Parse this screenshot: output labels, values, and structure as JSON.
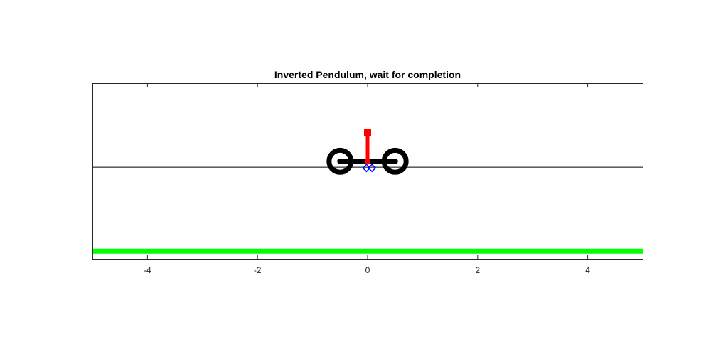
{
  "chart_data": {
    "type": "scatter",
    "title": "Inverted Pendulum, wait for completion",
    "xlabel": "",
    "ylabel": "",
    "xlim": [
      -5,
      5
    ],
    "ylim": [
      -1.1,
      1.0
    ],
    "x_ticks": [
      -4,
      -2,
      0,
      2,
      4
    ],
    "x_tick_labels": [
      "-4",
      "-2",
      "0",
      "2",
      "4"
    ],
    "y_ticks": [],
    "grid": false,
    "legend": "none",
    "reference_line": {
      "y": 0,
      "color": "#000000"
    },
    "ground": {
      "y": -1.0,
      "color": "#00ff00"
    },
    "cart": {
      "color": "#000000",
      "axle": {
        "x_start": -0.5,
        "x_end": 0.5,
        "y": 0.07
      },
      "wheels": [
        {
          "x": -0.5,
          "y": 0.07,
          "radius": 0.2
        },
        {
          "x": 0.5,
          "y": 0.07,
          "radius": 0.2
        }
      ],
      "hubs": [
        {
          "x": -0.5,
          "y": 0.07
        },
        {
          "x": 0.5,
          "y": 0.07
        }
      ]
    },
    "pendulum": {
      "color": "#ff0000",
      "pivot": {
        "x": 0.0,
        "y": 0.07
      },
      "tip": {
        "x": 0.0,
        "y": 0.41
      }
    },
    "reference_markers": {
      "color": "#0000ff",
      "points": [
        {
          "x": -0.02,
          "y": -0.01
        },
        {
          "x": 0.08,
          "y": -0.01
        }
      ]
    }
  }
}
